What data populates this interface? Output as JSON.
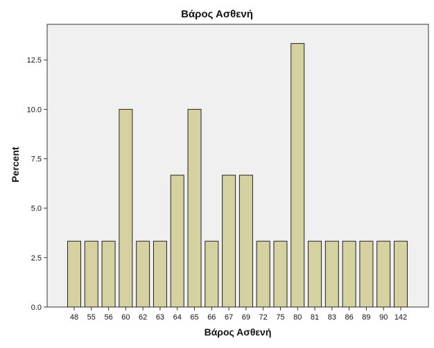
{
  "chart_data": {
    "type": "bar",
    "title": "Βάρος Ασθενή",
    "xlabel": "Βάρος Ασθενή",
    "ylabel": "Percent",
    "categories": [
      "48",
      "55",
      "56",
      "60",
      "62",
      "63",
      "64",
      "65",
      "66",
      "67",
      "69",
      "72",
      "75",
      "80",
      "81",
      "83",
      "86",
      "89",
      "90",
      "142"
    ],
    "values": [
      3.33,
      3.33,
      3.33,
      10.0,
      3.33,
      3.33,
      6.67,
      10.0,
      3.33,
      6.67,
      6.67,
      3.33,
      3.33,
      13.33,
      3.33,
      3.33,
      3.33,
      3.33,
      3.33,
      3.33
    ],
    "yticks": [
      0.0,
      2.5,
      5.0,
      7.5,
      10.0,
      12.5
    ],
    "ytick_labels": [
      "0.0",
      "2.5",
      "5.0",
      "7.5",
      "10.0",
      "12.5"
    ],
    "ylim": [
      0,
      14.3
    ],
    "grid": false,
    "colors": {
      "bar_fill": "#d6d1a0",
      "bar_stroke": "#222222",
      "plot_background": "#f0f0f0",
      "axis": "#333333"
    }
  }
}
